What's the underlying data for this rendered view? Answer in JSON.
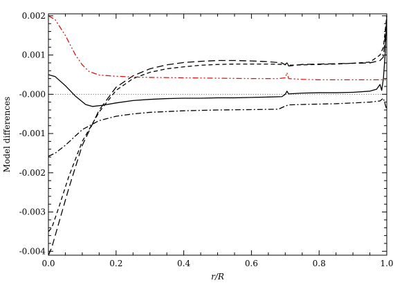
{
  "chart_data": {
    "type": "line",
    "title": "",
    "xlabel": "r/R",
    "ylabel": "Model differences",
    "xlim": [
      0.0,
      1.0
    ],
    "ylim": [
      -0.0041,
      0.00205
    ],
    "xticks": [
      0.0,
      0.2,
      0.4,
      0.6,
      0.8,
      1.0
    ],
    "xtick_labels": [
      "0.0",
      "0.2",
      "0.4",
      "0.6",
      "0.8",
      "1.0"
    ],
    "yticks": [
      -0.004,
      -0.003,
      -0.002,
      -0.001,
      0.0,
      0.001,
      0.002
    ],
    "ytick_labels": [
      "-0.004",
      "-0.003",
      "-0.002",
      "-0.001",
      "-0.000",
      "0.001",
      "0.002"
    ],
    "reference_line": {
      "y": 0.0,
      "style": "dotted",
      "color": "#555555"
    },
    "grid": false,
    "legend": "none",
    "series": [
      {
        "color": "#000000",
        "dash": "solid",
        "x": [
          0.0,
          0.02,
          0.05,
          0.08,
          0.11,
          0.13,
          0.16,
          0.2,
          0.25,
          0.3,
          0.35,
          0.4,
          0.45,
          0.5,
          0.55,
          0.6,
          0.65,
          0.69,
          0.7,
          0.705,
          0.71,
          0.75,
          0.8,
          0.85,
          0.9,
          0.95,
          0.97,
          0.98,
          0.985,
          0.99,
          0.995,
          1.0
        ],
        "y": [
          0.0005,
          0.00045,
          0.00022,
          -5e-05,
          -0.00026,
          -0.00031,
          -0.00028,
          -0.00022,
          -0.00016,
          -0.00013,
          -0.00011,
          -0.0001,
          -0.0001,
          -9e-05,
          -9e-05,
          -8e-05,
          -7e-05,
          -6e-05,
          0.0,
          8e-05,
          1e-05,
          3e-05,
          4e-05,
          4e-05,
          5e-05,
          8e-05,
          0.00013,
          0.00025,
          0.0001,
          0.0004,
          0.001,
          0.002
        ]
      },
      {
        "color": "#000000",
        "dash": "long-dash",
        "x": [
          0.0,
          0.01,
          0.03,
          0.06,
          0.1,
          0.15,
          0.2,
          0.25,
          0.3,
          0.35,
          0.4,
          0.45,
          0.5,
          0.55,
          0.6,
          0.65,
          0.69,
          0.7,
          0.705,
          0.71,
          0.75,
          0.8,
          0.85,
          0.9,
          0.95,
          0.98,
          0.99,
          1.0
        ],
        "y": [
          -0.0041,
          -0.0039,
          -0.0033,
          -0.0024,
          -0.0013,
          -0.0004,
          0.00018,
          0.00047,
          0.00065,
          0.00075,
          0.00081,
          0.00084,
          0.00086,
          0.00086,
          0.00085,
          0.00083,
          0.0008,
          0.00075,
          0.00082,
          0.00072,
          0.00076,
          0.00077,
          0.00078,
          0.00079,
          0.0008,
          0.00086,
          0.00095,
          0.0019
        ]
      },
      {
        "color": "#000000",
        "dash": "short-dash",
        "x": [
          0.0,
          0.01,
          0.03,
          0.06,
          0.1,
          0.15,
          0.2,
          0.25,
          0.3,
          0.35,
          0.4,
          0.45,
          0.5,
          0.55,
          0.6,
          0.65,
          0.7,
          0.705,
          0.71,
          0.75,
          0.8,
          0.85,
          0.9,
          0.95,
          0.98,
          0.99,
          1.0
        ],
        "y": [
          -0.0035,
          -0.0034,
          -0.0029,
          -0.0021,
          -0.0012,
          -0.00045,
          0.0001,
          0.0004,
          0.00056,
          0.00065,
          0.0007,
          0.00074,
          0.00076,
          0.00077,
          0.00077,
          0.00077,
          0.00076,
          0.0008,
          0.00074,
          0.00075,
          0.00076,
          0.00077,
          0.00079,
          0.00082,
          0.001,
          0.0012,
          0.002
        ]
      },
      {
        "color": "#000000",
        "dash": "dash-dot",
        "x": [
          0.0,
          0.02,
          0.05,
          0.1,
          0.15,
          0.2,
          0.25,
          0.3,
          0.35,
          0.4,
          0.5,
          0.6,
          0.68,
          0.7,
          0.71,
          0.75,
          0.8,
          0.85,
          0.9,
          0.95,
          0.98,
          0.99,
          1.0
        ],
        "y": [
          -0.00158,
          -0.0015,
          -0.0013,
          -0.0009,
          -0.00067,
          -0.00056,
          -0.0005,
          -0.00046,
          -0.00044,
          -0.00042,
          -0.0004,
          -0.00039,
          -0.00038,
          -0.0003,
          -0.00027,
          -0.00026,
          -0.00025,
          -0.00024,
          -0.00022,
          -0.0002,
          -0.00017,
          -0.0001,
          -0.0004
        ]
      },
      {
        "color": "#dd1111",
        "dash": "dash-dot-dot",
        "x": [
          0.0,
          0.02,
          0.05,
          0.08,
          0.1,
          0.12,
          0.15,
          0.2,
          0.25,
          0.3,
          0.4,
          0.5,
          0.6,
          0.68,
          0.7,
          0.705,
          0.71,
          0.75,
          0.8,
          0.9,
          0.95,
          1.0
        ],
        "y": [
          0.002,
          0.0019,
          0.0015,
          0.001,
          0.00075,
          0.00058,
          0.00049,
          0.00046,
          0.00044,
          0.00043,
          0.00042,
          0.00041,
          0.0004,
          0.0004,
          0.00042,
          0.00055,
          0.0004,
          0.00038,
          0.00037,
          0.00037,
          0.00037,
          0.00037
        ]
      }
    ]
  }
}
